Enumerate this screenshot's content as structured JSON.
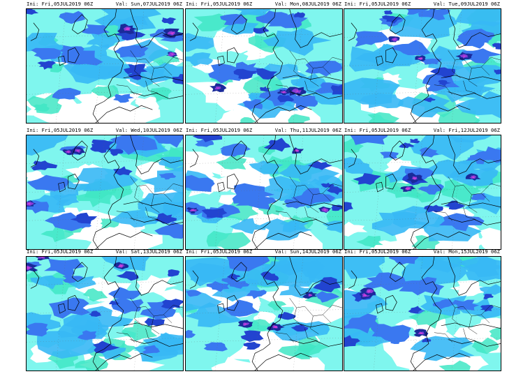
{
  "legend_colors": {
    "light_cyan": "#7ff6ee",
    "teal": "#3fe6c4",
    "sky_blue": "#37b8f5",
    "blue": "#3a78f0",
    "deep_blue": "#2244d0",
    "navy": "#1a2a9a",
    "violet": "#8a3ad8",
    "magenta": "#d040d8"
  },
  "panels": [
    {
      "ini": "Ini: Fri,05JUL2019 06Z",
      "val": "Val: Sun,07JUL2019 06Z"
    },
    {
      "ini": "Ini: Fri,05JUL2019 06Z",
      "val": "Val: Mon,08JUL2019 06Z"
    },
    {
      "ini": "Ini: Fri,05JUL2019 06Z",
      "val": "Val: Tue,09JUL2019 06Z"
    },
    {
      "ini": "Ini: Fri,05JUL2019 06Z",
      "val": "Val: Wed,10JUL2019 06Z"
    },
    {
      "ini": "Ini: Fri,05JUL2019 06Z",
      "val": "Val: Thu,11JUL2019 06Z"
    },
    {
      "ini": "Ini: Fri,05JUL2019 06Z",
      "val": "Val: Fri,12JUL2019 06Z"
    },
    {
      "ini": "Ini: Fri,05JUL2019 06Z",
      "val": "Val: Sat,13JUL2019 06Z"
    },
    {
      "ini": "Ini: Fri,05JUL2019 06Z",
      "val": "Val: Sun,14JUL2019 06Z"
    },
    {
      "ini": "Ini: Fri,05JUL2019 06Z",
      "val": "Val: Mon,15JUL2019 06Z"
    }
  ]
}
